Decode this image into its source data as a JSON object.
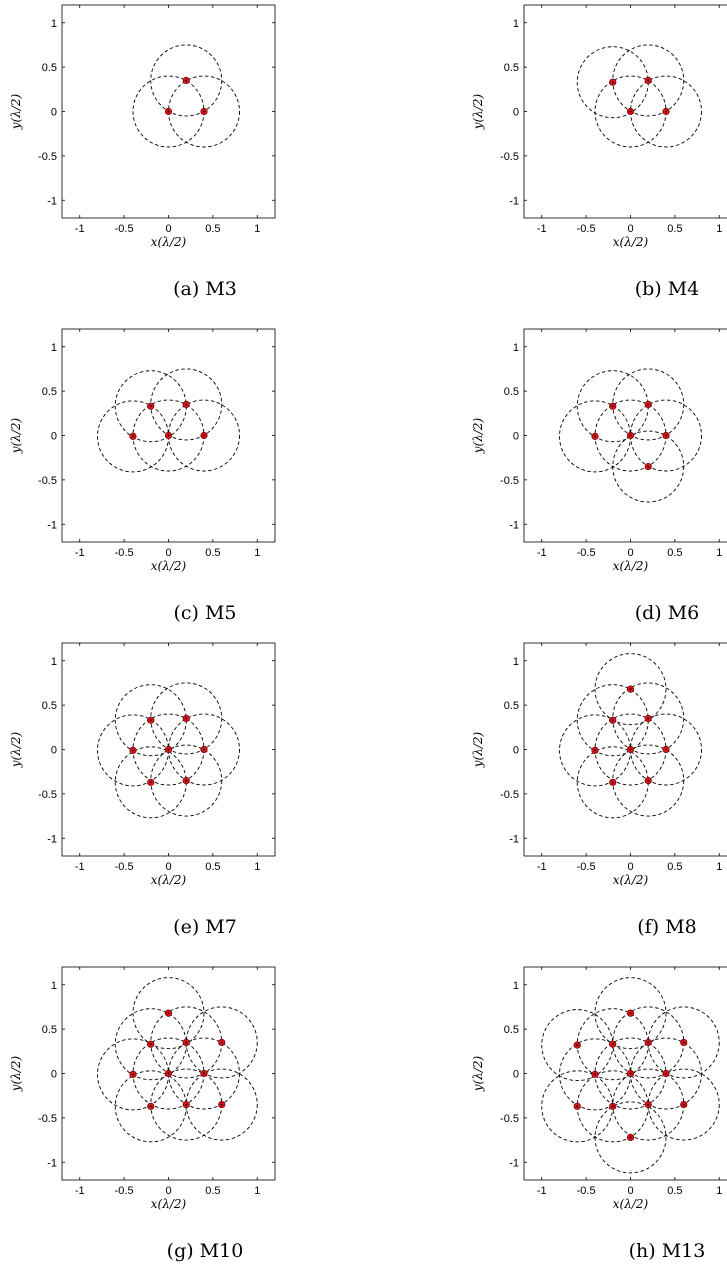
{
  "chart_data": [
    {
      "type": "scatter",
      "caption": "(a) M3",
      "xlabel": "x(λ/2)",
      "ylabel": "y(λ/2)",
      "xlim": [
        -1.2,
        1.2
      ],
      "ylim": [
        -1.2,
        1.2
      ],
      "xticks": [
        "-1",
        "-0.5",
        "0",
        "0.5",
        "1"
      ],
      "yticks": [
        "1",
        "0.5",
        "0",
        "-0.5",
        "-1"
      ],
      "circle_radius": 0.4,
      "grid": false,
      "points": [
        [
          0,
          0
        ],
        [
          0.4,
          0
        ],
        [
          0.2,
          0.35
        ]
      ]
    },
    {
      "type": "scatter",
      "caption": "(b) M4",
      "xlabel": "x(λ/2)",
      "ylabel": "y(λ/2)",
      "xlim": [
        -1.2,
        1.2
      ],
      "ylim": [
        -1.2,
        1.2
      ],
      "xticks": [
        "-1",
        "-0.5",
        "0",
        "0.5",
        "1"
      ],
      "yticks": [
        "1",
        "0.5",
        "0",
        "-0.5",
        "-1"
      ],
      "circle_radius": 0.4,
      "grid": false,
      "points": [
        [
          0,
          0
        ],
        [
          0.4,
          0
        ],
        [
          0.2,
          0.35
        ],
        [
          -0.2,
          0.33
        ]
      ]
    },
    {
      "type": "scatter",
      "caption": "(c) M5",
      "xlabel": "x(λ/2)",
      "ylabel": "y(λ/2)",
      "xlim": [
        -1.2,
        1.2
      ],
      "ylim": [
        -1.2,
        1.2
      ],
      "xticks": [
        "-1",
        "-0.5",
        "0",
        "0.5",
        "1"
      ],
      "yticks": [
        "1",
        "0.5",
        "0",
        "-0.5",
        "-1"
      ],
      "circle_radius": 0.4,
      "grid": false,
      "points": [
        [
          0,
          0
        ],
        [
          0.4,
          0
        ],
        [
          0.2,
          0.35
        ],
        [
          -0.2,
          0.33
        ],
        [
          -0.4,
          -0.01
        ]
      ]
    },
    {
      "type": "scatter",
      "caption": "(d) M6",
      "xlabel": "x(λ/2)",
      "ylabel": "y(λ/2)",
      "xlim": [
        -1.2,
        1.2
      ],
      "ylim": [
        -1.2,
        1.2
      ],
      "xticks": [
        "-1",
        "-0.5",
        "0",
        "0.5",
        "1"
      ],
      "yticks": [
        "1",
        "0.5",
        "0",
        "-0.5",
        "-1"
      ],
      "circle_radius": 0.4,
      "grid": false,
      "points": [
        [
          0,
          0
        ],
        [
          0.4,
          0
        ],
        [
          0.2,
          0.35
        ],
        [
          -0.2,
          0.33
        ],
        [
          -0.4,
          -0.01
        ],
        [
          0.2,
          -0.35
        ]
      ]
    },
    {
      "type": "scatter",
      "caption": "(e) M7",
      "xlabel": "x(λ/2)",
      "ylabel": "y(λ/2)",
      "xlim": [
        -1.2,
        1.2
      ],
      "ylim": [
        -1.2,
        1.2
      ],
      "xticks": [
        "-1",
        "-0.5",
        "0",
        "0.5",
        "1"
      ],
      "yticks": [
        "1",
        "0.5",
        "0",
        "-0.5",
        "-1"
      ],
      "circle_radius": 0.4,
      "grid": false,
      "points": [
        [
          0,
          0
        ],
        [
          0.4,
          0
        ],
        [
          0.2,
          0.35
        ],
        [
          -0.2,
          0.33
        ],
        [
          -0.4,
          -0.01
        ],
        [
          0.2,
          -0.35
        ],
        [
          -0.2,
          -0.37
        ]
      ]
    },
    {
      "type": "scatter",
      "caption": "(f) M8",
      "xlabel": "x(λ/2)",
      "ylabel": "y(λ/2)",
      "xlim": [
        -1.2,
        1.2
      ],
      "ylim": [
        -1.2,
        1.2
      ],
      "xticks": [
        "-1",
        "-0.5",
        "0",
        "0.5",
        "1"
      ],
      "yticks": [
        "1",
        "0.5",
        "0",
        "-0.5",
        "-1"
      ],
      "circle_radius": 0.4,
      "grid": false,
      "points": [
        [
          0,
          0
        ],
        [
          0.4,
          0
        ],
        [
          0.2,
          0.35
        ],
        [
          -0.2,
          0.33
        ],
        [
          -0.4,
          -0.01
        ],
        [
          0.2,
          -0.35
        ],
        [
          -0.2,
          -0.37
        ],
        [
          0,
          0.68
        ]
      ]
    },
    {
      "type": "scatter",
      "caption": "(g) M10",
      "xlabel": "x(λ/2)",
      "ylabel": "y(λ/2)",
      "xlim": [
        -1.2,
        1.2
      ],
      "ylim": [
        -1.2,
        1.2
      ],
      "xticks": [
        "-1",
        "-0.5",
        "0",
        "0.5",
        "1"
      ],
      "yticks": [
        "1",
        "0.5",
        "0",
        "-0.5",
        "-1"
      ],
      "circle_radius": 0.4,
      "grid": false,
      "points": [
        [
          0,
          0
        ],
        [
          0.4,
          0
        ],
        [
          0.2,
          0.35
        ],
        [
          -0.2,
          0.33
        ],
        [
          -0.4,
          -0.01
        ],
        [
          0.2,
          -0.35
        ],
        [
          -0.2,
          -0.37
        ],
        [
          0,
          0.68
        ],
        [
          0.6,
          0.35
        ],
        [
          0.6,
          -0.35
        ]
      ]
    },
    {
      "type": "scatter",
      "caption": "(h) M13",
      "xlabel": "x(λ/2)",
      "ylabel": "y(λ/2)",
      "xlim": [
        -1.2,
        1.2
      ],
      "ylim": [
        -1.2,
        1.2
      ],
      "xticks": [
        "-1",
        "-0.5",
        "0",
        "0.5",
        "1"
      ],
      "yticks": [
        "1",
        "0.5",
        "0",
        "-0.5",
        "-1"
      ],
      "circle_radius": 0.4,
      "grid": false,
      "points": [
        [
          0,
          0
        ],
        [
          0.4,
          0
        ],
        [
          0.2,
          0.35
        ],
        [
          -0.2,
          0.33
        ],
        [
          -0.4,
          -0.01
        ],
        [
          0.2,
          -0.35
        ],
        [
          -0.2,
          -0.37
        ],
        [
          0,
          0.68
        ],
        [
          0.6,
          0.35
        ],
        [
          0.6,
          -0.35
        ],
        [
          -0.6,
          0.32
        ],
        [
          -0.6,
          -0.37
        ],
        [
          0,
          -0.72
        ]
      ]
    }
  ],
  "colors": {
    "marker_fill": "#e0141b",
    "marker_edge": "#7a0000",
    "circle_stroke": "#000000",
    "axes": "#000000"
  }
}
